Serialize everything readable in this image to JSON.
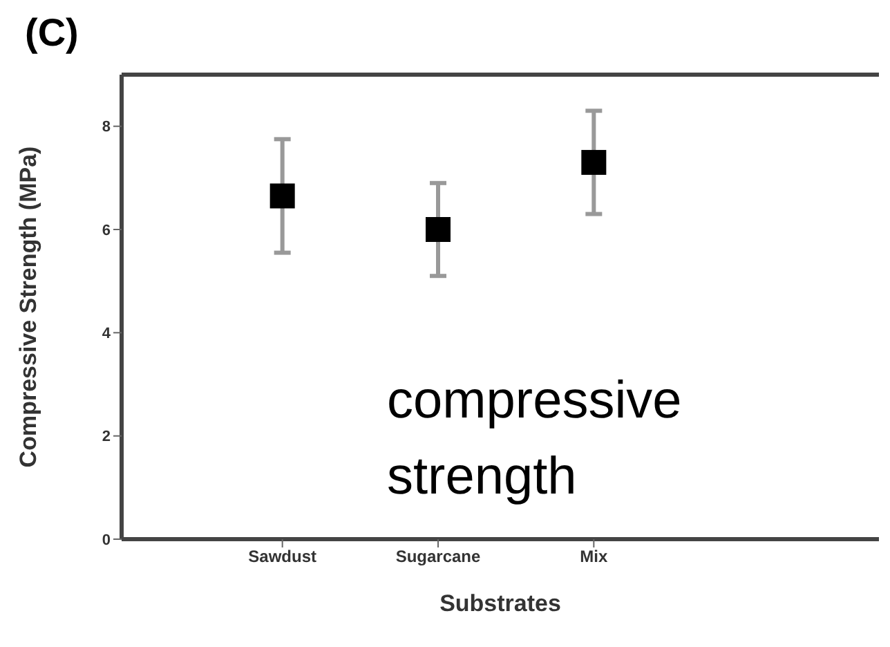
{
  "chart_data": {
    "type": "scatter",
    "title": "(C)",
    "xlabel": "Substrates",
    "ylabel": "Compressive Strength (MPa)",
    "categories": [
      "Sawdust",
      "Sugarcane",
      "Mix"
    ],
    "values": [
      6.65,
      6.0,
      7.3
    ],
    "errors": [
      1.1,
      0.9,
      1.0
    ],
    "color": "#000000",
    "marker": "square",
    "ylim": [
      0,
      9
    ],
    "yticks": [
      0,
      2,
      4,
      6,
      8
    ],
    "annotations": [
      "compressive strength"
    ]
  }
}
